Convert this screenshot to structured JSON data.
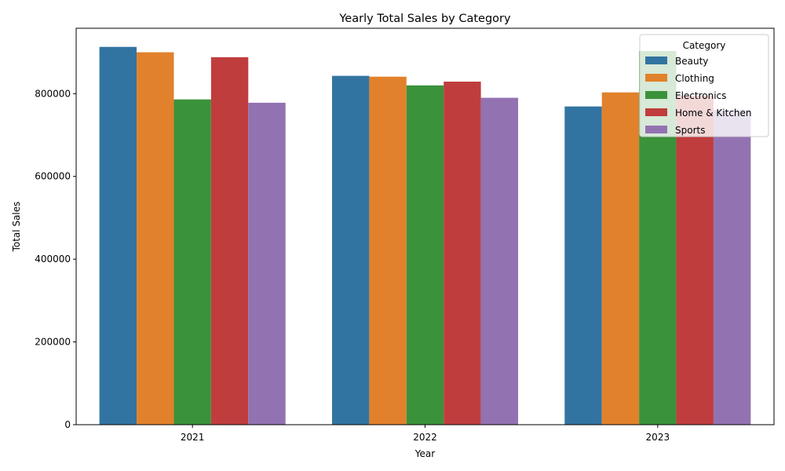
{
  "chart_data": {
    "type": "bar",
    "title": "Yearly Total Sales by Category",
    "xlabel": "Year",
    "ylabel": "Total Sales",
    "categories": [
      "2021",
      "2022",
      "2023"
    ],
    "ylim": [
      0,
      958000
    ],
    "yticks": [
      0,
      200000,
      400000,
      600000,
      800000
    ],
    "grid": false,
    "legend": {
      "title": "Category",
      "placement": "top-right"
    },
    "series": [
      {
        "name": "Beauty",
        "color": "#3274a1",
        "values": [
          913000,
          843000,
          769000
        ]
      },
      {
        "name": "Clothing",
        "color": "#e1812c",
        "values": [
          900000,
          841000,
          803000
        ]
      },
      {
        "name": "Electronics",
        "color": "#3a923a",
        "values": [
          786000,
          820000,
          903000
        ]
      },
      {
        "name": "Home & Kitchen",
        "color": "#c03d3e",
        "values": [
          888000,
          829000,
          795000
        ]
      },
      {
        "name": "Sports",
        "color": "#9372b2",
        "values": [
          778000,
          790000,
          760000
        ]
      }
    ]
  }
}
